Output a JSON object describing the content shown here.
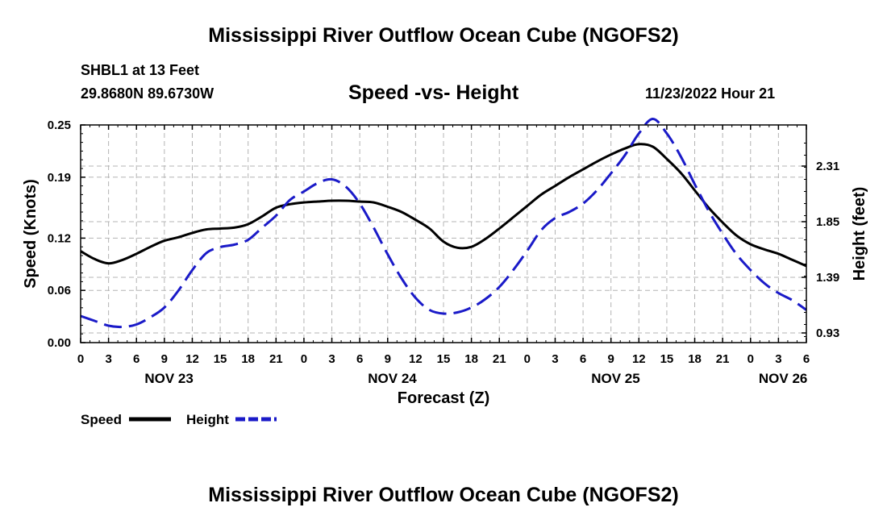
{
  "header": {
    "title": "Mississippi River Outflow Ocean Cube (NGOFS2)",
    "station": "SHBL1 at 13 Feet",
    "coords": "29.8680N  89.6730W",
    "subtitle": "Speed -vs- Height",
    "datetime": "11/23/2022 Hour 21"
  },
  "footer": {
    "title": "Mississippi River Outflow Ocean Cube (NGOFS2)"
  },
  "chart_data": {
    "type": "line",
    "title": "Speed -vs- Height",
    "xlabel": "Forecast (Z)",
    "ylabel": "Speed (Knots)",
    "y2label": "Height (feet)",
    "x_range": [
      0,
      78
    ],
    "x_ticks": [
      0,
      3,
      6,
      9,
      12,
      15,
      18,
      21,
      24,
      27,
      30,
      33,
      36,
      39,
      42,
      45,
      48,
      51,
      54,
      57,
      60,
      63,
      66,
      69,
      72,
      75,
      78
    ],
    "x_tick_labels": [
      "0",
      "3",
      "6",
      "9",
      "12",
      "15",
      "18",
      "21",
      "0",
      "3",
      "6",
      "9",
      "12",
      "15",
      "18",
      "21",
      "0",
      "3",
      "6",
      "9",
      "12",
      "15",
      "18",
      "21",
      "0",
      "3",
      "6"
    ],
    "day_labels": [
      {
        "x": 9.5,
        "label": "NOV 23"
      },
      {
        "x": 33.5,
        "label": "NOV 24"
      },
      {
        "x": 57.5,
        "label": "NOV 25"
      },
      {
        "x": 75.5,
        "label": "NOV 26"
      }
    ],
    "ylim": [
      0,
      0.25
    ],
    "y_ticks": [
      0.0,
      0.06,
      0.12,
      0.19,
      0.25
    ],
    "y_tick_labels": [
      "0.00",
      "0.06",
      "0.12",
      "0.19",
      "0.25"
    ],
    "y2lim": [
      0.85,
      2.65
    ],
    "y2_ticks": [
      0.93,
      1.39,
      1.85,
      2.31
    ],
    "y2_tick_labels": [
      "0.93",
      "1.39",
      "1.85",
      "2.31"
    ],
    "grid": true,
    "legend_position": "bottom-left",
    "series": [
      {
        "name": "Speed",
        "axis": "left",
        "color": "#000000",
        "style": "solid",
        "x": [
          0,
          1.5,
          3,
          4.5,
          6,
          7.5,
          9,
          10.5,
          12,
          13.5,
          15,
          16.5,
          18,
          19.5,
          21,
          22.5,
          24,
          25.5,
          27,
          28.5,
          30,
          31.5,
          33,
          34.5,
          36,
          37.5,
          39,
          40.5,
          42,
          43.5,
          45,
          46.5,
          48,
          49.5,
          51,
          52.5,
          54,
          55.5,
          57,
          58.5,
          60,
          61.5,
          63,
          64.5,
          66,
          67.5,
          69,
          70.5,
          72,
          73.5,
          75,
          76.5,
          78
        ],
        "values": [
          0.105,
          0.096,
          0.091,
          0.095,
          0.102,
          0.11,
          0.117,
          0.121,
          0.126,
          0.13,
          0.131,
          0.132,
          0.136,
          0.145,
          0.155,
          0.159,
          0.161,
          0.162,
          0.163,
          0.163,
          0.162,
          0.161,
          0.156,
          0.15,
          0.141,
          0.131,
          0.116,
          0.109,
          0.11,
          0.119,
          0.131,
          0.144,
          0.157,
          0.17,
          0.18,
          0.19,
          0.199,
          0.208,
          0.216,
          0.223,
          0.228,
          0.225,
          0.211,
          0.195,
          0.175,
          0.155,
          0.138,
          0.123,
          0.113,
          0.107,
          0.102,
          0.095,
          0.088
        ]
      },
      {
        "name": "Height",
        "axis": "right",
        "color": "#1a1ac8",
        "style": "dashed",
        "x": [
          0,
          1.5,
          3,
          4.5,
          6,
          7.5,
          9,
          10.5,
          12,
          13.5,
          15,
          16.5,
          18,
          19.5,
          21,
          22.5,
          24,
          25.5,
          27,
          28.5,
          30,
          31.5,
          33,
          34.5,
          36,
          37.5,
          39,
          40.5,
          42,
          43.5,
          45,
          46.5,
          48,
          49.5,
          51,
          52.5,
          54,
          55.5,
          57,
          58.5,
          60,
          61.5,
          63,
          64.5,
          66,
          67.5,
          69,
          70.5,
          72,
          73.5,
          75,
          76.5,
          78
        ],
        "values": [
          1.07,
          1.03,
          0.99,
          0.98,
          1.0,
          1.06,
          1.14,
          1.28,
          1.45,
          1.59,
          1.64,
          1.66,
          1.7,
          1.8,
          1.9,
          2.03,
          2.1,
          2.17,
          2.2,
          2.14,
          2.0,
          1.8,
          1.58,
          1.38,
          1.22,
          1.12,
          1.09,
          1.1,
          1.14,
          1.21,
          1.31,
          1.45,
          1.61,
          1.78,
          1.88,
          1.93,
          2.0,
          2.11,
          2.25,
          2.4,
          2.58,
          2.7,
          2.58,
          2.39,
          2.16,
          1.94,
          1.75,
          1.58,
          1.45,
          1.34,
          1.26,
          1.2,
          1.12
        ]
      }
    ]
  }
}
